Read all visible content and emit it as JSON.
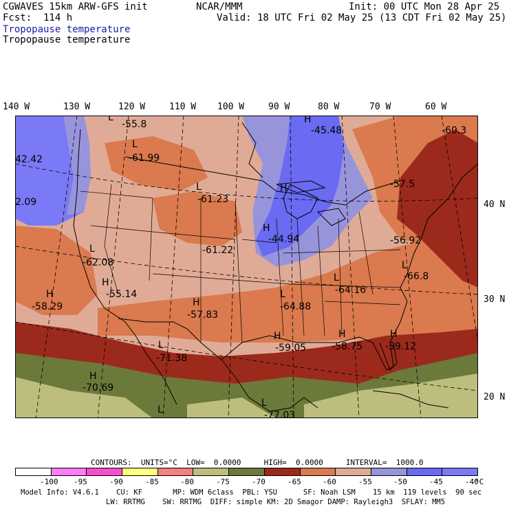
{
  "header": {
    "model": "CGWAVES 15km ARW-GFS init",
    "fcst": "Fcst:  114 h",
    "center": "NCAR/MMM",
    "init": "Init: 00 UTC Mon 28 Apr 25",
    "valid": "Valid: 18 UTC Fri 02 May 25 (13 CDT Fri 02 May 25)",
    "field_title_blue": "Tropopause temperature",
    "field_title_black": "Tropopause temperature"
  },
  "lon_labels": [
    "140 W",
    "130 W",
    "120 W",
    "110 W",
    "100 W",
    "90 W",
    "80 W",
    "70 W",
    "60 W"
  ],
  "lat_labels": [
    "40 N",
    "30 N",
    "20 N"
  ],
  "map_labels": [
    {
      "mark": "L",
      "value": "-55.8"
    },
    {
      "mark": "L",
      "value": "-61.99"
    },
    {
      "mark": "",
      "value": "42.42"
    },
    {
      "mark": "",
      "value": "2.09"
    },
    {
      "mark": "L",
      "value": "-61.23"
    },
    {
      "mark": "H",
      "value": "-45.48"
    },
    {
      "mark": "",
      "value": "-60.3"
    },
    {
      "mark": "H",
      "value": ""
    },
    {
      "mark": "",
      "value": "-57.5"
    },
    {
      "mark": "H",
      "value": "-44.94"
    },
    {
      "mark": "",
      "value": "-61.22"
    },
    {
      "mark": "L",
      "value": "-62.08"
    },
    {
      "mark": "",
      "value": "-56.92"
    },
    {
      "mark": "L",
      "value": "-66.8"
    },
    {
      "mark": "H",
      "value": "-55.14"
    },
    {
      "mark": "H",
      "value": "-58.29"
    },
    {
      "mark": "H",
      "value": "-57.83"
    },
    {
      "mark": "L",
      "value": "-64.88"
    },
    {
      "mark": "L",
      "value": "-64.16"
    },
    {
      "mark": "H",
      "value": "-59.05"
    },
    {
      "mark": "H",
      "value": "-58.75"
    },
    {
      "mark": "H",
      "value": "-59.12"
    },
    {
      "mark": "L",
      "value": "-71.38"
    },
    {
      "mark": "H",
      "value": "-70.69"
    },
    {
      "mark": "L",
      "value": "-77.03"
    },
    {
      "mark": "L",
      "value": ""
    }
  ],
  "legend": {
    "contours_line": "CONTOURS:  UNITS=°C  LOW=  0.0000     HIGH=  0.0000     INTERVAL=  1000.0",
    "colors": [
      "#ffffff",
      "#ff7cf5",
      "#f54fd0",
      "#ffff80",
      "#f58080",
      "#bdbd7d",
      "#6b7a3a",
      "#9c2a1c",
      "#da7a4e",
      "#e0ab96",
      "#9894dc",
      "#6a6af2",
      "#7a7af6"
    ],
    "tick_labels": [
      "-100",
      "-95",
      "-90",
      "-85",
      "-80",
      "-75",
      "-70",
      "-65",
      "-60",
      "-55",
      "-50",
      "-45",
      "-40",
      "°C"
    ]
  },
  "footer": {
    "line1": "Model Info: V4.6.1    CU: KF       MP: WDM 6class  PBL: YSU      SF: Noah LSM    15 km  119 levels  90 sec",
    "line2": "LW: RRTMG    SW: RRTMG  DIFF: simple KM: 2D Smagor DAMP: Rayleigh3  SFLAY: MM5"
  }
}
